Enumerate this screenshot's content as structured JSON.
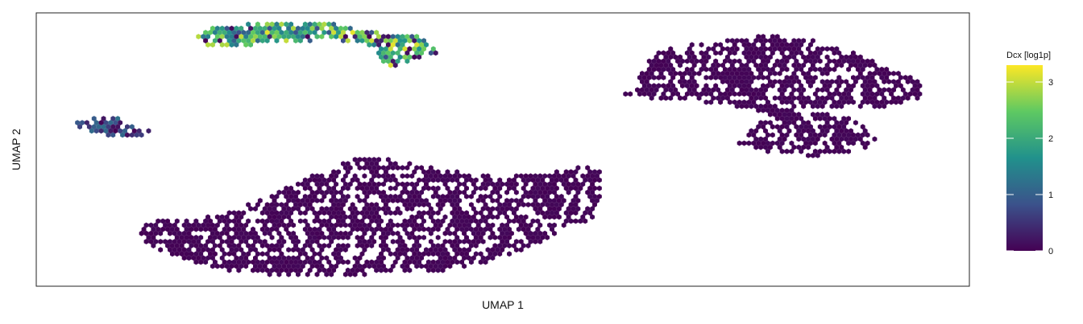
{
  "chart_data": {
    "type": "scatter",
    "subtype": "hexbin-umap",
    "title": "",
    "xlabel": "UMAP 1",
    "ylabel": "UMAP 2",
    "xlim": [
      0,
      1
    ],
    "ylim": [
      0,
      1
    ],
    "axis_ticks": "hidden",
    "grid": false,
    "legend": {
      "title": "Dcx [log1p]",
      "placement": "right",
      "range": [
        0,
        3.3
      ],
      "ticks": [
        "0",
        "1",
        "2",
        "3"
      ],
      "tick_values": [
        0,
        1,
        2,
        3
      ],
      "colors": [
        "#440154",
        "#3b528b",
        "#21918c",
        "#5ec962",
        "#fde725"
      ]
    },
    "clusters": [
      {
        "label": "top cluster",
        "x": [
          0.175,
          0.43
        ],
        "y": [
          0.84,
          0.99
        ],
        "dcx_mean": 2.0,
        "dcx_max": 3.2
      },
      {
        "label": "small left cluster",
        "x": [
          0.04,
          0.13
        ],
        "y": [
          0.59,
          0.66
        ],
        "dcx_mean": 0.5,
        "dcx_max": 1.2
      },
      {
        "label": "large bottom cluster",
        "x": [
          0.105,
          0.6
        ],
        "y": [
          0.04,
          0.5
        ],
        "dcx_mean": 0.0,
        "dcx_max": 0.1
      },
      {
        "label": "upper right cluster",
        "x": [
          0.62,
          0.95
        ],
        "y": [
          0.66,
          0.93
        ],
        "dcx_mean": 0.0,
        "dcx_max": 0.1
      },
      {
        "label": "lower right cluster",
        "x": [
          0.75,
          0.9
        ],
        "y": [
          0.48,
          0.66
        ],
        "dcx_mean": 0.0,
        "dcx_max": 0.1
      }
    ]
  }
}
